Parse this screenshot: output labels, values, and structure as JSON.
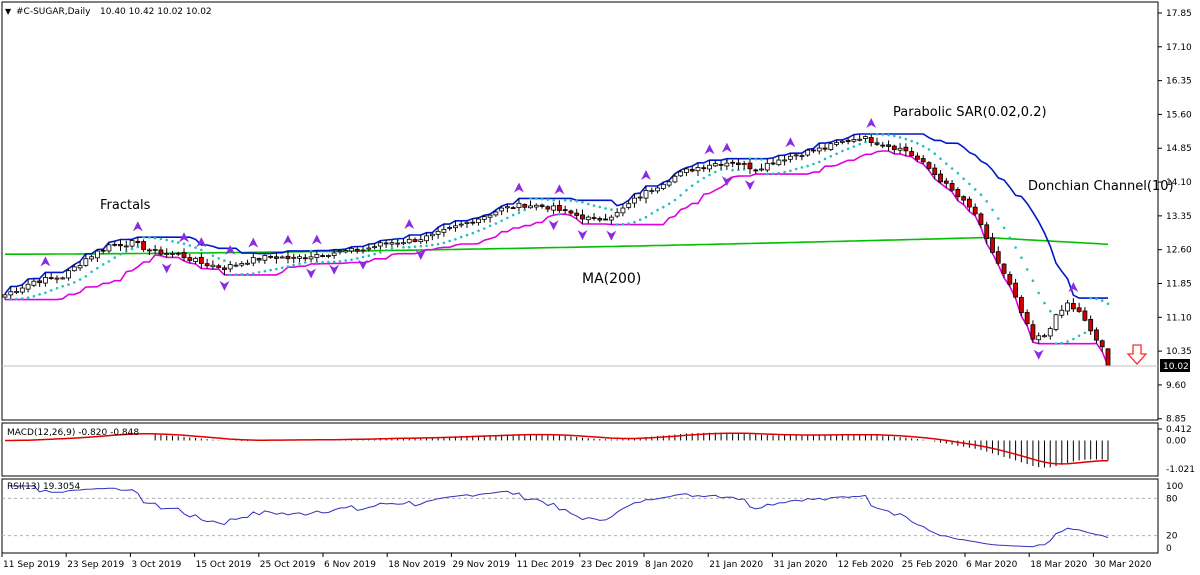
{
  "chart_data": {
    "type": "candlestick",
    "title": "#C-SUGAR,Daily",
    "ohlc_header": "10.40 10.42 10.02 10.02",
    "last_price": "10.02",
    "y_ticks": [
      "17.85",
      "17.10",
      "16.35",
      "15.60",
      "14.85",
      "14.10",
      "13.35",
      "12.60",
      "11.85",
      "11.10",
      "10.35",
      "9.60",
      "8.85"
    ],
    "x_tick_labels": [
      "11 Sep 2019",
      "23 Sep 2019",
      "3 Oct 2019",
      "15 Oct 2019",
      "25 Oct 2019",
      "6 Nov 2019",
      "18 Nov 2019",
      "29 Nov 2019",
      "11 Dec 2019",
      "23 Dec 2019",
      "8 Jan 2020",
      "21 Jan 2020",
      "31 Jan 2020",
      "12 Feb 2020",
      "25 Feb 2020",
      "6 Mar 2020",
      "18 Mar 2020",
      "30 Mar 2020"
    ],
    "close_anchors": [
      [
        0,
        11.6
      ],
      [
        5,
        11.9
      ],
      [
        10,
        12.0
      ],
      [
        14,
        12.4
      ],
      [
        18,
        12.7
      ],
      [
        22,
        12.75
      ],
      [
        26,
        12.55
      ],
      [
        30,
        12.5
      ],
      [
        34,
        12.3
      ],
      [
        38,
        12.2
      ],
      [
        42,
        12.35
      ],
      [
        46,
        12.45
      ],
      [
        50,
        12.4
      ],
      [
        54,
        12.5
      ],
      [
        58,
        12.55
      ],
      [
        62,
        12.6
      ],
      [
        66,
        12.75
      ],
      [
        70,
        12.8
      ],
      [
        74,
        12.9
      ],
      [
        78,
        13.1
      ],
      [
        82,
        13.3
      ],
      [
        86,
        13.5
      ],
      [
        90,
        13.6
      ],
      [
        94,
        13.55
      ],
      [
        98,
        13.4
      ],
      [
        102,
        13.25
      ],
      [
        106,
        13.4
      ],
      [
        110,
        13.8
      ],
      [
        114,
        14.1
      ],
      [
        118,
        14.35
      ],
      [
        122,
        14.5
      ],
      [
        126,
        14.55
      ],
      [
        130,
        14.4
      ],
      [
        134,
        14.6
      ],
      [
        138,
        14.75
      ],
      [
        142,
        14.85
      ],
      [
        144,
        14.95
      ],
      [
        148,
        15.1
      ],
      [
        152,
        14.95
      ],
      [
        156,
        14.8
      ],
      [
        160,
        14.4
      ],
      [
        164,
        13.9
      ],
      [
        168,
        13.4
      ],
      [
        170,
        12.8
      ],
      [
        172,
        12.3
      ],
      [
        174,
        11.8
      ],
      [
        176,
        11.2
      ],
      [
        178,
        10.6
      ],
      [
        180,
        10.7
      ],
      [
        182,
        11.1
      ],
      [
        184,
        11.4
      ],
      [
        186,
        11.2
      ],
      [
        188,
        10.8
      ],
      [
        190,
        10.4
      ],
      [
        191,
        10.02
      ]
    ],
    "ma200": {
      "label": "MA(200)",
      "start": 12.5,
      "end": 12.72,
      "peak_bar": 170,
      "peak": 12.87
    },
    "parabolic_sar": {
      "label": "Parabolic SAR(0.02,0.2)"
    },
    "donchian": {
      "label": "Donchian Channel(10)"
    },
    "fractals": {
      "label": "Fractals"
    },
    "macd": {
      "label": "MACD(12,26,9) -0.820 -0.848",
      "ticks": [
        "0.412",
        "0.00",
        "-1.021"
      ]
    },
    "rsi": {
      "label": "RSI(13) 19.3054",
      "ticks": [
        "100",
        "80",
        "20",
        "0"
      ],
      "levels": [
        80,
        20
      ]
    },
    "colors": {
      "bull": "#ffffff",
      "bear": "#d00000",
      "ma": "#00c000",
      "sar": "#20c0c0",
      "donchian_upper": "#0018c8",
      "donchian_lower": "#e000e0",
      "fractal": "#8a2be2",
      "macd_signal": "#e00000",
      "rsi": "#3030c0",
      "arrow": "#ff2a2a"
    }
  }
}
